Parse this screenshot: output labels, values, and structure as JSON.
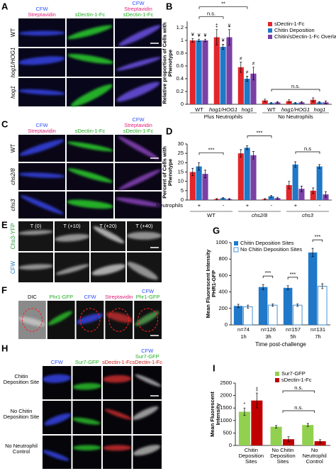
{
  "image_panels": [
    {
      "letter": "A",
      "columns": [
        [
          {
            "text": "CFW",
            "color": "#2f4fff"
          },
          {
            "text": "Streptavidin",
            "color": "#e0207a"
          }
        ],
        [
          {
            "text": "sDectin-1-Fc",
            "color": "#1fae1f"
          }
        ],
        [
          {
            "text": "CFW",
            "color": "#2f4fff"
          },
          {
            "text": "Streptavidin",
            "color": "#e0207a"
          },
          {
            "text": "sDectin-1-Fc",
            "color": "#1fae1f"
          }
        ]
      ],
      "rows": [
        {
          "text": "WT"
        },
        {
          "text": "hog1/HOG1"
        },
        {
          "text": "hog1"
        }
      ]
    },
    {
      "letter": "C",
      "columns": [
        [
          {
            "text": "CFW",
            "color": "#2f4fff"
          },
          {
            "text": "Streptavidin",
            "color": "#e0207a"
          }
        ],
        [
          {
            "text": "sDectin-1-Fc",
            "color": "#1fae1f"
          }
        ],
        [
          {
            "text": "CFW",
            "color": "#2f4fff"
          },
          {
            "text": "Streptavidin",
            "color": "#e0207a"
          },
          {
            "text": "sDectin-1-Fc",
            "color": "#1fae1f"
          }
        ]
      ],
      "rows": [
        {
          "text": "WT"
        },
        {
          "text": "chs2/8"
        },
        {
          "text": "chs3"
        }
      ]
    },
    {
      "letter": "E",
      "tile_labels": [
        "T (0)",
        "T (+10)",
        "T (+20)",
        "T (+40)"
      ],
      "rows": [
        {
          "text": "Chs3-YFP",
          "color": "#2e9e3e"
        },
        {
          "text": "CFW",
          "color": "#2a7fc0"
        }
      ]
    },
    {
      "letter": "F",
      "columns": [
        [
          {
            "text": "DIC",
            "color": "#000000"
          }
        ],
        [
          {
            "text": "Phr1-GFP",
            "color": "#1fae1f"
          }
        ],
        [
          {
            "text": "CFW",
            "color": "#2f4fff"
          }
        ],
        [
          {
            "text": "Streptavidin",
            "color": "#e0207a"
          }
        ],
        [
          {
            "text": "CFW",
            "color": "#2f4fff"
          },
          {
            "text": "Phr1-GFP",
            "color": "#1fae1f"
          }
        ]
      ]
    },
    {
      "letter": "H",
      "columns": [
        [
          {
            "text": "CFW",
            "color": "#2f4fff"
          }
        ],
        [
          {
            "text": "Sur7-GFP",
            "color": "#1fae1f"
          }
        ],
        [
          {
            "text": "sDectin-1-Fc",
            "color": "#d01818"
          }
        ],
        [
          {
            "text": "CFW",
            "color": "#2f4fff"
          },
          {
            "text": "Sur7-GFP",
            "color": "#1fae1f"
          },
          {
            "text": "sDectin-1-Fc",
            "color": "#d01818"
          }
        ]
      ],
      "rows": [
        {
          "text": "Chitin Deposition Site"
        },
        {
          "text": "No Chitin Deposition Site"
        },
        {
          "text": "No Neutrophil Control"
        }
      ]
    }
  ],
  "chart_data": [
    {
      "letter": "B",
      "type": "bar",
      "ylabel": "Relative proportion of Cells with Phenotype",
      "categories": [
        "WT",
        "hog1/HOG1",
        "hog1",
        "WT",
        "hog1/HOG1",
        "hog1"
      ],
      "groups": [
        "Plus Neutrophils",
        "No Neutrophils"
      ],
      "series": [
        {
          "name": "sDectin-1-Fc",
          "color": "#e3262b",
          "values": [
            1,
            1.05,
            0.58,
            0.06,
            0.05,
            0.07
          ],
          "errors": [
            0.03,
            0.12,
            0.08,
            0.02,
            0.02,
            0.03
          ],
          "symbols": [
            "¥",
            "‡",
            "≠",
            null,
            null,
            null
          ]
        },
        {
          "name": "Chitin Deposition",
          "color": "#1f78c8",
          "values": [
            1,
            0.9,
            0.4,
            0.02,
            0.02,
            0.03
          ],
          "errors": [
            0.02,
            0.04,
            0.04,
            0.01,
            0.01,
            0.01
          ],
          "symbols": [
            "¥",
            "¥",
            "≠",
            null,
            null,
            null
          ]
        },
        {
          "name": "Chitin/sDectin-1-Fc Overlap",
          "color": "#7b3fa6",
          "values": [
            1,
            1.05,
            0.48,
            0.03,
            0.03,
            0.03
          ],
          "errors": [
            0.02,
            0.12,
            0.1,
            0.01,
            0.01,
            0.02
          ],
          "symbols": [
            "¥",
            "¥",
            "≠",
            null,
            null,
            null
          ]
        }
      ],
      "annotations": [
        "n.s.",
        "**",
        "n.s."
      ],
      "ylim": [
        0,
        1.3
      ],
      "yticks": [
        0,
        0.2,
        0.4,
        0.6,
        0.8,
        1,
        1.2
      ],
      "legend": "upper right"
    },
    {
      "letter": "D",
      "type": "bar",
      "ylabel": "Percent of Cells with Phenotype",
      "categories": [
        "+",
        "-",
        "+",
        "-",
        "+",
        "-"
      ],
      "category_title": "Neutrophils",
      "groups": [
        "WT",
        "chs2/8",
        "chs3"
      ],
      "series": [
        {
          "color": "#e3262b",
          "values": [
            15,
            0.5,
            25,
            0.5,
            8,
            5
          ],
          "errors": [
            2,
            0.3,
            2,
            0.3,
            2,
            1.5
          ]
        },
        {
          "color": "#1f78c8",
          "values": [
            18,
            1,
            28,
            2,
            19,
            18
          ],
          "errors": [
            2,
            0.3,
            1,
            0.5,
            1.5,
            1
          ]
        },
        {
          "color": "#7b3fa6",
          "values": [
            14,
            0.5,
            24,
            1,
            6,
            3
          ],
          "errors": [
            2,
            0.3,
            2,
            0.5,
            1.5,
            1.5
          ]
        }
      ],
      "annotations": [
        "***",
        "***",
        "n.s"
      ],
      "ylim": [
        0,
        30
      ],
      "yticks": [
        0,
        5,
        10,
        15,
        20,
        25,
        30
      ]
    },
    {
      "letter": "G",
      "type": "bar",
      "ylabel": "Mean Fluorescent Intensity PHR1-GFP",
      "xlabel": "Time post-challenge",
      "categories": [
        "1h",
        "3h",
        "5h",
        "7h"
      ],
      "category_notes": [
        "n=74",
        "n=126",
        "n=157",
        "n=131"
      ],
      "series": [
        {
          "name": "Chitin Deposition Sites",
          "color": "#1f78c8",
          "values": [
            230,
            460,
            450,
            880
          ],
          "errors": [
            20,
            30,
            25,
            50
          ]
        },
        {
          "name": "No Chitin Deposition Sites",
          "color": "#ffffff",
          "edge": "#1f78c8",
          "values": [
            220,
            240,
            240,
            470
          ],
          "errors": [
            20,
            15,
            15,
            30
          ]
        }
      ],
      "annotations": [
        "***",
        "***",
        "***"
      ],
      "ylim": [
        0,
        1000
      ],
      "yticks": [
        0,
        200,
        400,
        600,
        800,
        1000
      ],
      "legend": "upper left"
    },
    {
      "letter": "I",
      "type": "bar",
      "ylabel": "Mean Fluorescent Intensity",
      "categories": [
        "Chitin Deposition Sites",
        "No Chitin Deposition Sites",
        "No Neutrophil Control"
      ],
      "series": [
        {
          "name": "Sur7-GFP",
          "color": "#92d050",
          "values": [
            1350,
            750,
            820
          ],
          "errors": [
            150,
            50,
            60
          ],
          "symbols": [
            "*",
            null,
            null
          ]
        },
        {
          "name": "sDectin-1-Fc",
          "color": "#c00000",
          "values": [
            1800,
            250,
            170
          ],
          "errors": [
            300,
            100,
            60
          ],
          "symbols": [
            "‡",
            null,
            null
          ]
        }
      ],
      "annotations": [
        "n.s.",
        "n.s."
      ],
      "ylim": [
        0,
        2500
      ],
      "yticks": [
        0,
        500,
        1000,
        1500,
        2000,
        2500
      ],
      "legend": "upper right"
    }
  ]
}
